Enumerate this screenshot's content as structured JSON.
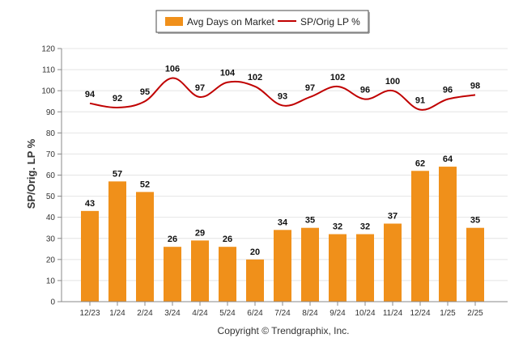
{
  "chart_data": {
    "type": "bar",
    "categories": [
      "12/23",
      "1/24",
      "2/24",
      "3/24",
      "4/24",
      "5/24",
      "6/24",
      "7/24",
      "8/24",
      "9/24",
      "10/24",
      "11/24",
      "12/24",
      "1/25",
      "2/25"
    ],
    "series": [
      {
        "name": "Avg Days on Market",
        "type": "bar",
        "color": "#f0901a",
        "values": [
          43,
          57,
          52,
          26,
          29,
          26,
          20,
          34,
          35,
          32,
          32,
          37,
          62,
          64,
          35
        ]
      },
      {
        "name": "SP/Orig LP %",
        "type": "line",
        "color": "#c00000",
        "values": [
          94,
          92,
          95,
          106,
          97,
          104,
          102,
          93,
          97,
          102,
          96,
          100,
          91,
          96,
          98
        ]
      }
    ],
    "ylabel": "SP/Orig. LP %",
    "ylim": [
      0,
      120
    ],
    "yticks": [
      0,
      10,
      20,
      30,
      40,
      50,
      60,
      70,
      80,
      90,
      100,
      110,
      120
    ],
    "grid": true,
    "legend": "top-center"
  },
  "footer": {
    "copyright": "Copyright © Trendgraphix, Inc."
  }
}
